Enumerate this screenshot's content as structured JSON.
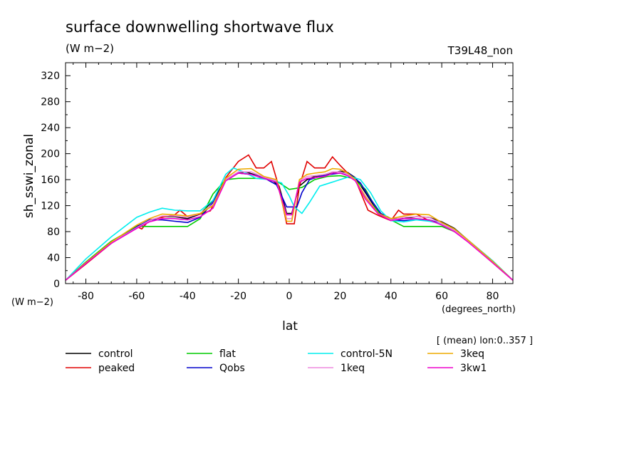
{
  "chart_data": {
    "type": "line",
    "title": "surface downwelling shortwave flux",
    "units_label": "(W m−2)",
    "run_label": "T39L48_non",
    "ylabel": "sh_sswi_zonal",
    "y_units": "(W m−2)",
    "xlabel": "lat",
    "x_units": "(degrees_north)",
    "annotation": "[ (mean) lon:0..357 ]",
    "xlim": [
      -88,
      88
    ],
    "ylim": [
      0,
      340
    ],
    "x_ticks": [
      -80,
      -60,
      -40,
      -20,
      0,
      20,
      40,
      60,
      80
    ],
    "y_ticks": [
      0,
      40,
      80,
      120,
      160,
      200,
      240,
      280,
      320
    ],
    "grid": false,
    "legend_position": "bottom",
    "series": [
      {
        "name": "control",
        "color": "#000000",
        "x": [
          -88,
          -80,
          -70,
          -60,
          -55,
          -50,
          -45,
          -40,
          -35,
          -30,
          -25,
          -20,
          -17,
          -14,
          -10,
          -7,
          -4,
          -1,
          1,
          4,
          7,
          10,
          14,
          17,
          20,
          23,
          26,
          30,
          35,
          40,
          45,
          50,
          55,
          60,
          65,
          70,
          80,
          88
        ],
        "y": [
          5,
          33,
          65,
          88,
          97,
          103,
          103,
          100,
          107,
          128,
          160,
          170,
          172,
          168,
          162,
          160,
          150,
          108,
          108,
          150,
          160,
          165,
          168,
          170,
          173,
          171,
          163,
          140,
          110,
          100,
          100,
          103,
          102,
          95,
          85,
          68,
          35,
          5
        ]
      },
      {
        "name": "peaked",
        "color": "#e00000",
        "x": [
          -88,
          -80,
          -70,
          -60,
          -58,
          -55,
          -50,
          -45,
          -43,
          -40,
          -35,
          -31,
          -25,
          -20,
          -16,
          -13,
          -10,
          -7,
          -4,
          -1,
          2,
          4,
          7,
          10,
          14,
          17,
          20,
          23,
          26,
          31,
          35,
          40,
          43,
          45,
          50,
          55,
          60,
          65,
          70,
          80,
          88
        ],
        "y": [
          5,
          30,
          62,
          88,
          84,
          98,
          102,
          106,
          113,
          103,
          107,
          112,
          163,
          188,
          198,
          178,
          178,
          188,
          148,
          92,
          92,
          150,
          188,
          178,
          178,
          195,
          182,
          170,
          160,
          113,
          105,
          97,
          113,
          107,
          107,
          97,
          92,
          82,
          66,
          32,
          5
        ]
      },
      {
        "name": "flat",
        "color": "#00cc00",
        "x": [
          -88,
          -80,
          -70,
          -60,
          -55,
          -50,
          -45,
          -40,
          -35,
          -30,
          -25,
          -20,
          -15,
          -10,
          -5,
          0,
          5,
          10,
          15,
          20,
          25,
          30,
          35,
          40,
          45,
          50,
          55,
          60,
          65,
          70,
          80,
          88
        ],
        "y": [
          5,
          33,
          65,
          88,
          88,
          88,
          88,
          88,
          100,
          138,
          160,
          162,
          162,
          162,
          158,
          145,
          148,
          160,
          165,
          166,
          162,
          145,
          110,
          98,
          88,
          88,
          88,
          88,
          80,
          66,
          34,
          5
        ]
      },
      {
        "name": "Qobs",
        "color": "#0000cc",
        "x": [
          -88,
          -80,
          -70,
          -60,
          -55,
          -50,
          -45,
          -40,
          -35,
          -30,
          -25,
          -20,
          -15,
          -10,
          -5,
          -1,
          1,
          3,
          5,
          8,
          12,
          16,
          20,
          24,
          28,
          32,
          36,
          40,
          45,
          50,
          55,
          60,
          65,
          70,
          80,
          88
        ],
        "y": [
          5,
          32,
          62,
          87,
          98,
          98,
          96,
          94,
          102,
          125,
          160,
          170,
          168,
          163,
          152,
          118,
          118,
          118,
          140,
          160,
          165,
          168,
          170,
          168,
          155,
          130,
          108,
          98,
          97,
          98,
          98,
          92,
          82,
          67,
          34,
          5
        ]
      },
      {
        "name": "control-5N",
        "color": "#00eeee",
        "x": [
          -88,
          -80,
          -70,
          -60,
          -55,
          -50,
          -45,
          -40,
          -35,
          -30,
          -25,
          -22,
          -18,
          -13,
          -8,
          -3,
          0,
          2,
          5,
          8,
          12,
          16,
          20,
          24,
          28,
          32,
          36,
          40,
          45,
          50,
          55,
          60,
          65,
          70,
          80,
          88
        ],
        "y": [
          5,
          38,
          72,
          102,
          110,
          116,
          113,
          112,
          112,
          128,
          168,
          178,
          172,
          162,
          160,
          155,
          135,
          118,
          108,
          125,
          150,
          155,
          160,
          165,
          160,
          140,
          112,
          97,
          95,
          98,
          96,
          92,
          84,
          68,
          35,
          5
        ]
      },
      {
        "name": "1keq",
        "color": "#ee88dd",
        "x": [
          -88,
          -80,
          -70,
          -60,
          -55,
          -50,
          -45,
          -40,
          -35,
          -30,
          -25,
          -20,
          -15,
          -10,
          -5,
          -1,
          1,
          4,
          7,
          10,
          14,
          17,
          20,
          23,
          26,
          30,
          35,
          40,
          45,
          50,
          55,
          60,
          65,
          70,
          80,
          88
        ],
        "y": [
          5,
          32,
          63,
          86,
          97,
          104,
          104,
          102,
          108,
          122,
          160,
          172,
          172,
          164,
          158,
          100,
          100,
          158,
          165,
          166,
          168,
          172,
          172,
          168,
          158,
          135,
          108,
          98,
          102,
          103,
          102,
          92,
          82,
          66,
          33,
          5
        ]
      },
      {
        "name": "3keq",
        "color": "#eeaa00",
        "x": [
          -88,
          -80,
          -70,
          -60,
          -55,
          -50,
          -45,
          -40,
          -35,
          -30,
          -25,
          -20,
          -15,
          -10,
          -5,
          -1,
          1,
          4,
          7,
          10,
          14,
          17,
          20,
          23,
          26,
          30,
          35,
          40,
          45,
          50,
          55,
          60,
          65,
          70,
          80,
          88
        ],
        "y": [
          5,
          32,
          64,
          90,
          100,
          107,
          106,
          104,
          108,
          120,
          162,
          176,
          177,
          165,
          160,
          96,
          96,
          160,
          168,
          170,
          172,
          177,
          176,
          170,
          160,
          133,
          108,
          100,
          104,
          107,
          106,
          94,
          84,
          68,
          34,
          5
        ]
      },
      {
        "name": "3kw1",
        "color": "#ee00cc",
        "x": [
          -88,
          -80,
          -70,
          -60,
          -55,
          -50,
          -45,
          -40,
          -35,
          -30,
          -25,
          -20,
          -15,
          -10,
          -5,
          -1,
          1,
          4,
          7,
          10,
          14,
          17,
          20,
          23,
          26,
          30,
          35,
          40,
          45,
          50,
          55,
          60,
          65,
          70,
          80,
          88
        ],
        "y": [
          5,
          31,
          62,
          85,
          95,
          100,
          100,
          98,
          103,
          116,
          158,
          170,
          168,
          162,
          156,
          106,
          106,
          156,
          162,
          163,
          165,
          170,
          170,
          166,
          158,
          130,
          107,
          97,
          100,
          100,
          98,
          90,
          80,
          65,
          32,
          5
        ]
      }
    ]
  }
}
